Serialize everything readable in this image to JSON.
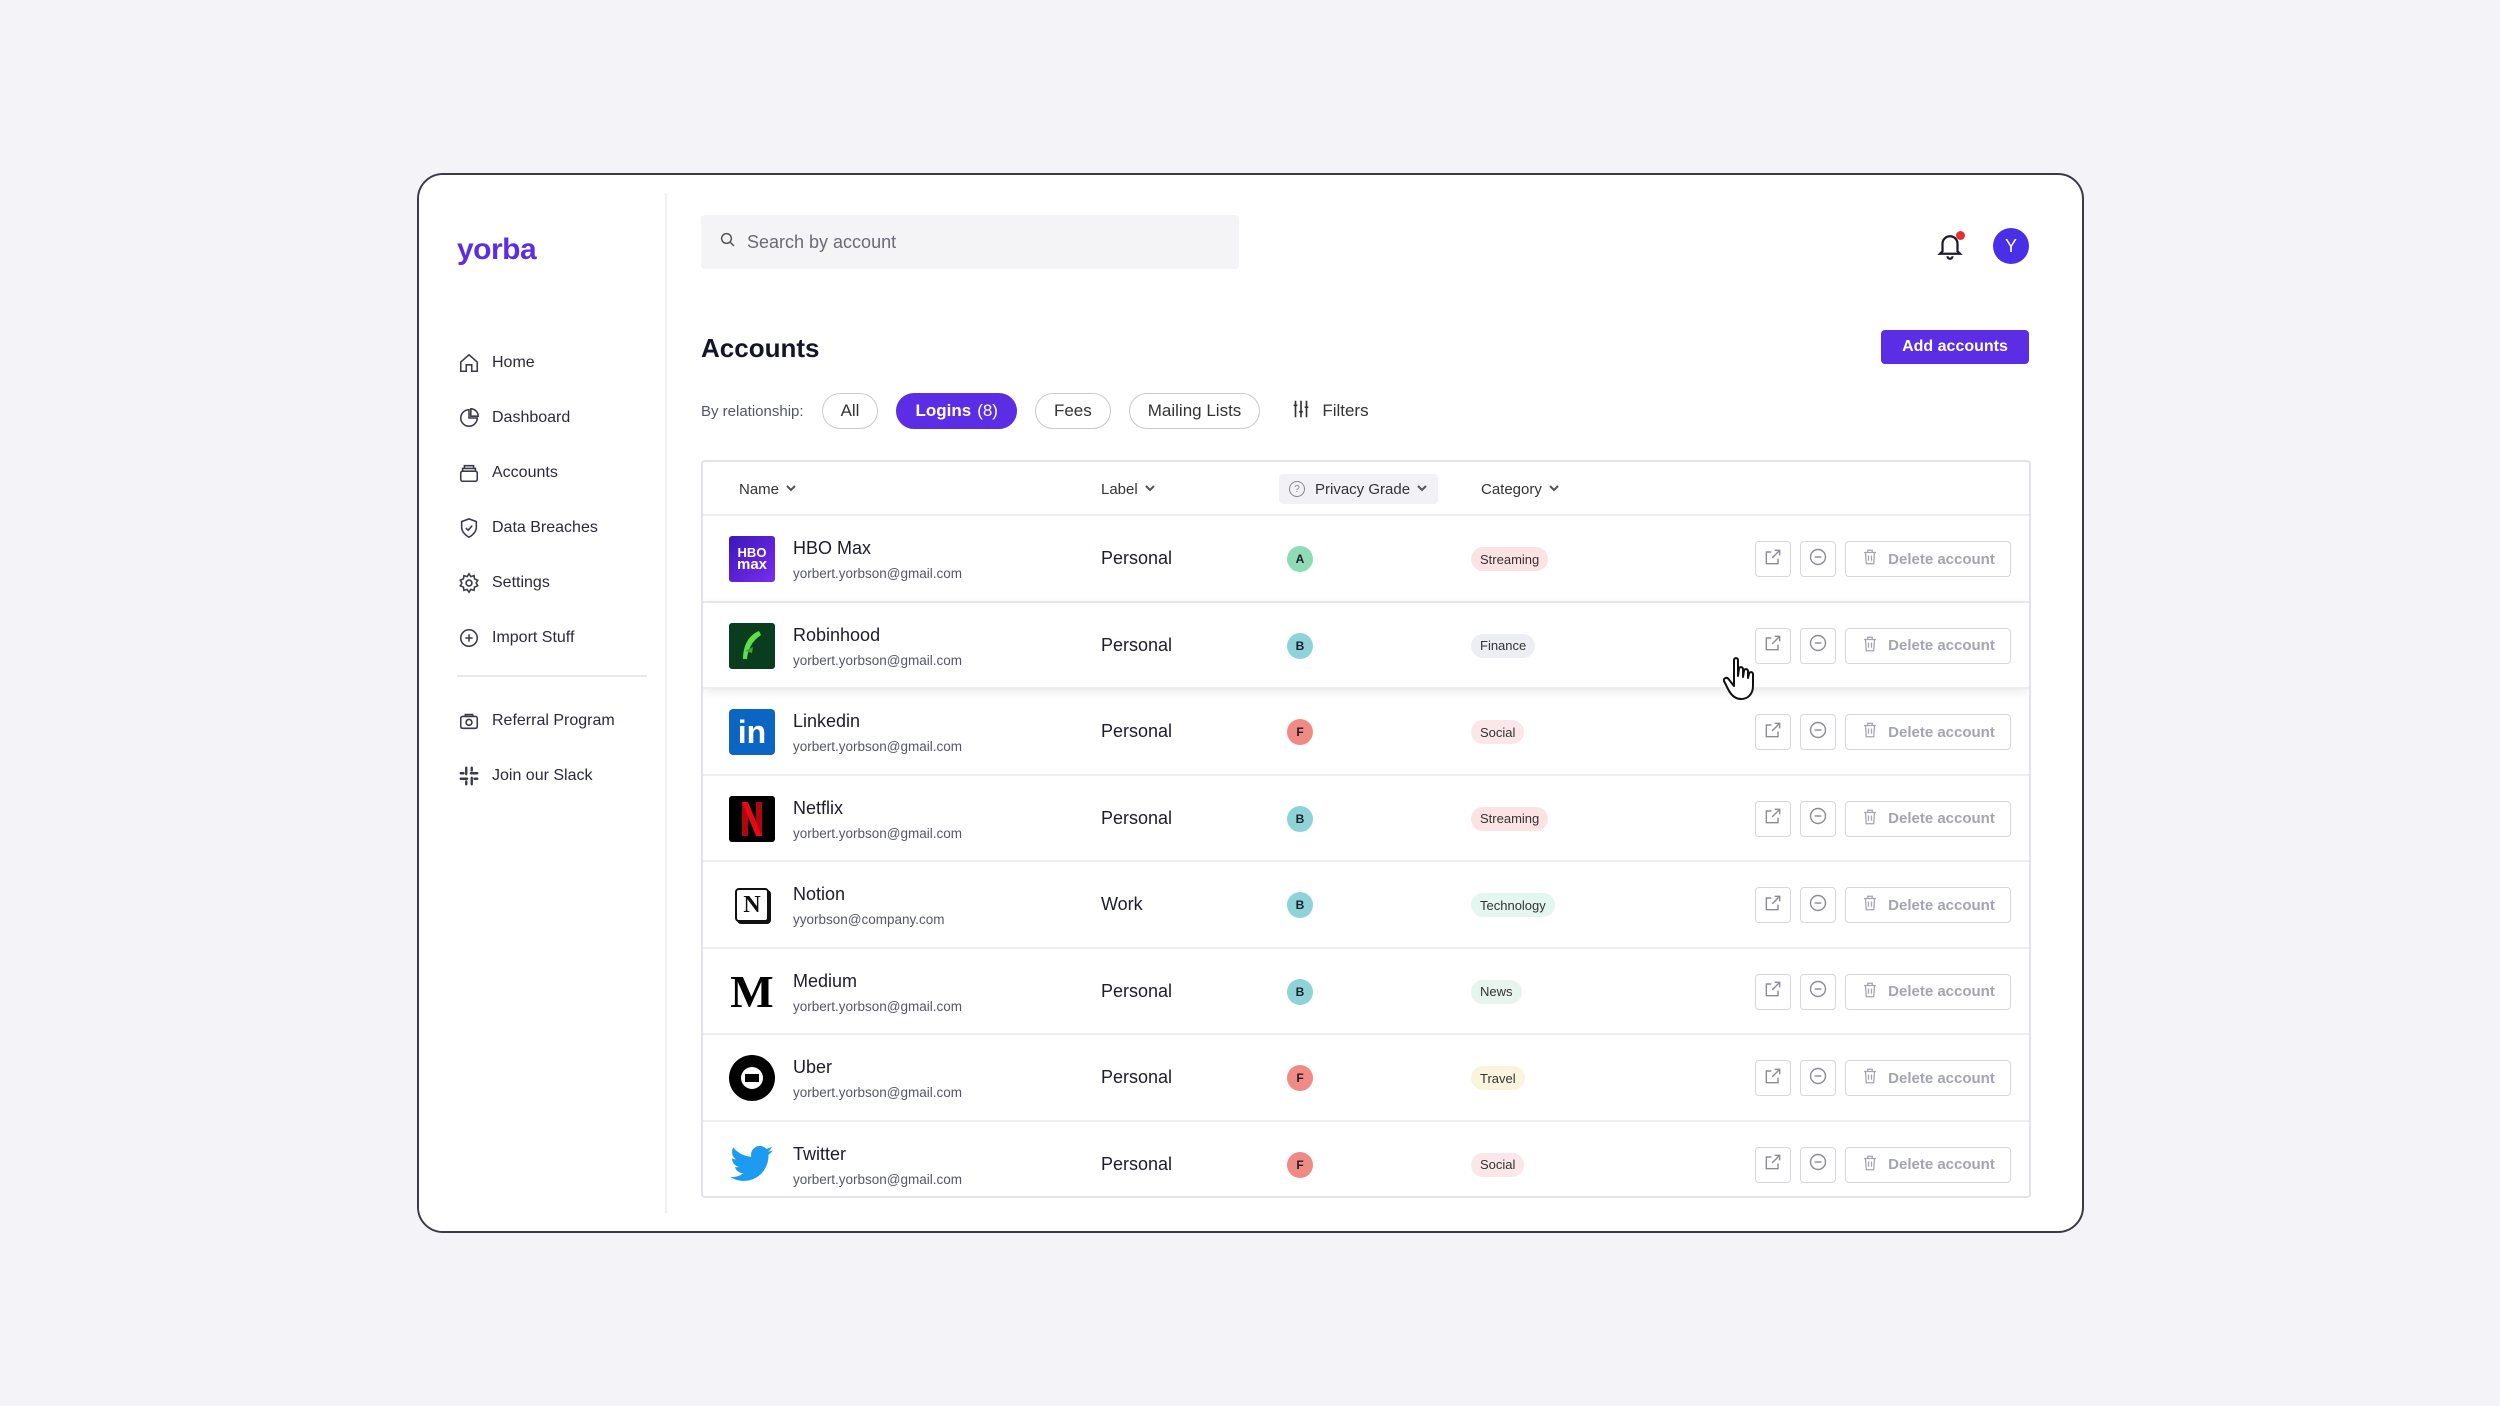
{
  "app": {
    "brand": "yorba"
  },
  "sidebar": {
    "items": [
      {
        "label": "Home",
        "icon": "home-icon"
      },
      {
        "label": "Dashboard",
        "icon": "pie-chart-icon"
      },
      {
        "label": "Accounts",
        "icon": "stack-icon"
      },
      {
        "label": "Data Breaches",
        "icon": "shield-icon"
      },
      {
        "label": "Settings",
        "icon": "gear-icon"
      },
      {
        "label": "Import Stuff",
        "icon": "plus-circle-icon"
      }
    ],
    "secondary": [
      {
        "label": "Referral Program",
        "icon": "gift-icon"
      },
      {
        "label": "Join our Slack",
        "icon": "slack-icon"
      }
    ]
  },
  "header": {
    "search_placeholder": "Search by account",
    "avatar_initial": "Y"
  },
  "page": {
    "title": "Accounts",
    "add_button": "Add accounts",
    "filter_label": "By relationship:",
    "filters": [
      {
        "label": "All",
        "count": "",
        "active": false
      },
      {
        "label": "Logins",
        "count": "(8)",
        "active": true
      },
      {
        "label": "Fees",
        "count": "",
        "active": false
      },
      {
        "label": "Mailing Lists",
        "count": "",
        "active": false
      }
    ],
    "filters_button": "Filters"
  },
  "table": {
    "columns": {
      "name": "Name",
      "label": "Label",
      "grade": "Privacy Grade",
      "category": "Category"
    },
    "delete_label": "Delete account",
    "rows": [
      {
        "name": "HBO Max",
        "email": "yorbert.yorbson@gmail.com",
        "label": "Personal",
        "grade": "A",
        "category": "Streaming",
        "logo": "hbo-max-logo"
      },
      {
        "name": "Robinhood",
        "email": "yorbert.yorbson@gmail.com",
        "label": "Personal",
        "grade": "B",
        "category": "Finance",
        "logo": "robinhood-logo"
      },
      {
        "name": "Linkedin",
        "email": "yorbert.yorbson@gmail.com",
        "label": "Personal",
        "grade": "F",
        "category": "Social",
        "logo": "linkedin-logo"
      },
      {
        "name": "Netflix",
        "email": "yorbert.yorbson@gmail.com",
        "label": "Personal",
        "grade": "B",
        "category": "Streaming",
        "logo": "netflix-logo"
      },
      {
        "name": "Notion",
        "email": "yyorbson@company.com",
        "label": "Work",
        "grade": "B",
        "category": "Technology",
        "logo": "notion-logo"
      },
      {
        "name": "Medium",
        "email": "yorbert.yorbson@gmail.com",
        "label": "Personal",
        "grade": "B",
        "category": "News",
        "logo": "medium-logo"
      },
      {
        "name": "Uber",
        "email": "yorbert.yorbson@gmail.com",
        "label": "Personal",
        "grade": "F",
        "category": "Travel",
        "logo": "uber-logo"
      },
      {
        "name": "Twitter",
        "email": "yorbert.yorbson@gmail.com",
        "label": "Personal",
        "grade": "F",
        "category": "Social",
        "logo": "twitter-logo"
      }
    ]
  },
  "colors": {
    "accent": "#5b2ee6",
    "grade_A": "#8fdbb4",
    "grade_B": "#8ed3d8",
    "grade_F": "#f08a84",
    "cat_Streaming": "#fbe3e4",
    "cat_Finance": "#eceef4",
    "cat_Social": "#fbe7e8",
    "cat_Technology": "#e3f6ef",
    "cat_News": "#e6f5ee",
    "cat_Travel": "#fbf4dc"
  }
}
